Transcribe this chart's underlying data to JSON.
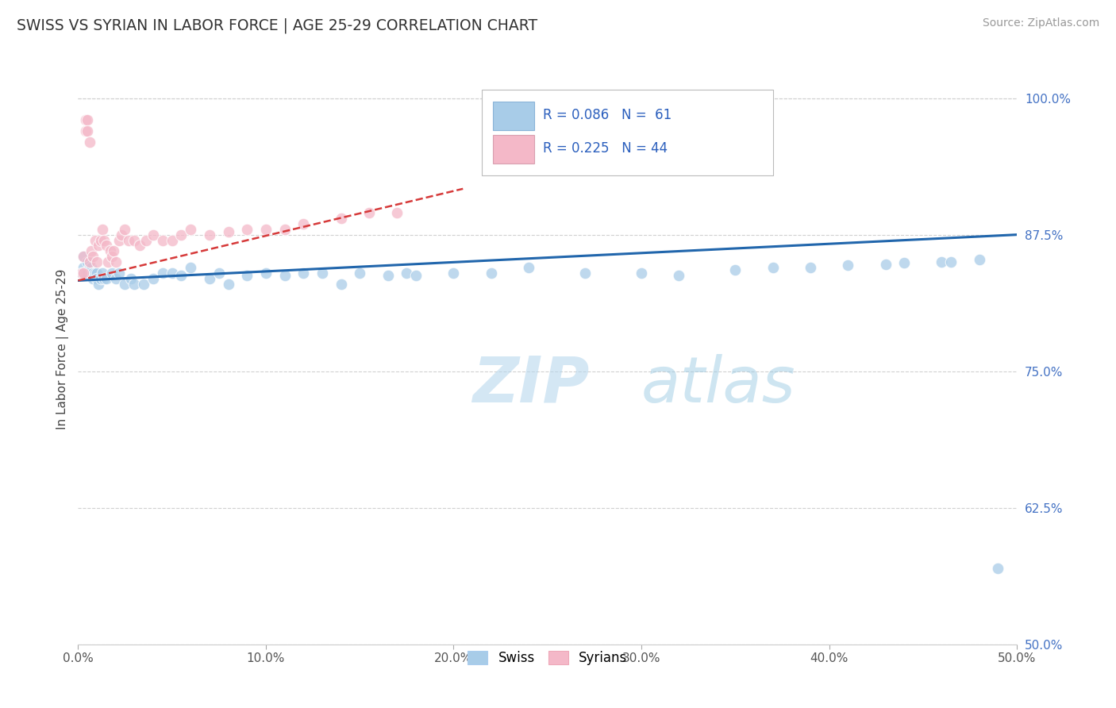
{
  "title": "SWISS VS SYRIAN IN LABOR FORCE | AGE 25-29 CORRELATION CHART",
  "source_text": "Source: ZipAtlas.com",
  "ylabel": "In Labor Force | Age 25-29",
  "xlim": [
    0.0,
    0.5
  ],
  "ylim": [
    0.5,
    1.04
  ],
  "xtick_labels": [
    "0.0%",
    "10.0%",
    "20.0%",
    "30.0%",
    "40.0%",
    "50.0%"
  ],
  "xtick_values": [
    0.0,
    0.1,
    0.2,
    0.3,
    0.4,
    0.5
  ],
  "ytick_labels_right": [
    "50.0%",
    "62.5%",
    "75.0%",
    "87.5%",
    "100.0%"
  ],
  "ytick_values_right": [
    0.5,
    0.625,
    0.75,
    0.875,
    1.0
  ],
  "legend_text_blue": "R = 0.086   N =  61",
  "legend_text_pink": "R = 0.225   N = 44",
  "blue_scatter_color": "#a8cce8",
  "pink_scatter_color": "#f4b8c8",
  "blue_line_color": "#2166ac",
  "pink_line_color": "#d63a3a",
  "watermark": "ZIPatlas",
  "background_color": "#ffffff",
  "swiss_x": [
    0.002,
    0.003,
    0.003,
    0.004,
    0.005,
    0.005,
    0.006,
    0.006,
    0.007,
    0.007,
    0.008,
    0.008,
    0.009,
    0.01,
    0.01,
    0.011,
    0.012,
    0.013,
    0.014,
    0.015,
    0.018,
    0.02,
    0.022,
    0.025,
    0.028,
    0.03,
    0.035,
    0.04,
    0.045,
    0.05,
    0.055,
    0.06,
    0.07,
    0.075,
    0.08,
    0.09,
    0.1,
    0.11,
    0.12,
    0.13,
    0.14,
    0.15,
    0.165,
    0.175,
    0.18,
    0.2,
    0.22,
    0.24,
    0.27,
    0.3,
    0.32,
    0.35,
    0.37,
    0.39,
    0.41,
    0.43,
    0.44,
    0.46,
    0.465,
    0.48,
    0.49
  ],
  "swiss_y": [
    0.84,
    0.845,
    0.855,
    0.84,
    0.84,
    0.85,
    0.845,
    0.85,
    0.84,
    0.845,
    0.84,
    0.835,
    0.84,
    0.84,
    0.835,
    0.83,
    0.835,
    0.84,
    0.835,
    0.835,
    0.84,
    0.835,
    0.84,
    0.83,
    0.835,
    0.83,
    0.83,
    0.835,
    0.84,
    0.84,
    0.838,
    0.845,
    0.835,
    0.84,
    0.83,
    0.838,
    0.84,
    0.838,
    0.84,
    0.84,
    0.83,
    0.84,
    0.838,
    0.84,
    0.838,
    0.84,
    0.84,
    0.845,
    0.84,
    0.84,
    0.838,
    0.843,
    0.845,
    0.845,
    0.847,
    0.848,
    0.849,
    0.85,
    0.85,
    0.852,
    0.57
  ],
  "syrian_x": [
    0.002,
    0.003,
    0.003,
    0.004,
    0.004,
    0.005,
    0.005,
    0.006,
    0.006,
    0.007,
    0.008,
    0.009,
    0.01,
    0.011,
    0.012,
    0.013,
    0.014,
    0.015,
    0.016,
    0.017,
    0.018,
    0.019,
    0.02,
    0.022,
    0.023,
    0.025,
    0.027,
    0.03,
    0.033,
    0.036,
    0.04,
    0.045,
    0.05,
    0.055,
    0.06,
    0.07,
    0.08,
    0.09,
    0.1,
    0.11,
    0.12,
    0.14,
    0.155,
    0.17
  ],
  "syrian_y": [
    0.84,
    0.855,
    0.84,
    0.97,
    0.98,
    0.98,
    0.97,
    0.85,
    0.96,
    0.86,
    0.855,
    0.87,
    0.85,
    0.865,
    0.87,
    0.88,
    0.87,
    0.865,
    0.85,
    0.86,
    0.855,
    0.86,
    0.85,
    0.87,
    0.875,
    0.88,
    0.87,
    0.87,
    0.865,
    0.87,
    0.875,
    0.87,
    0.87,
    0.875,
    0.88,
    0.875,
    0.878,
    0.88,
    0.88,
    0.88,
    0.885,
    0.89,
    0.895,
    0.895
  ]
}
